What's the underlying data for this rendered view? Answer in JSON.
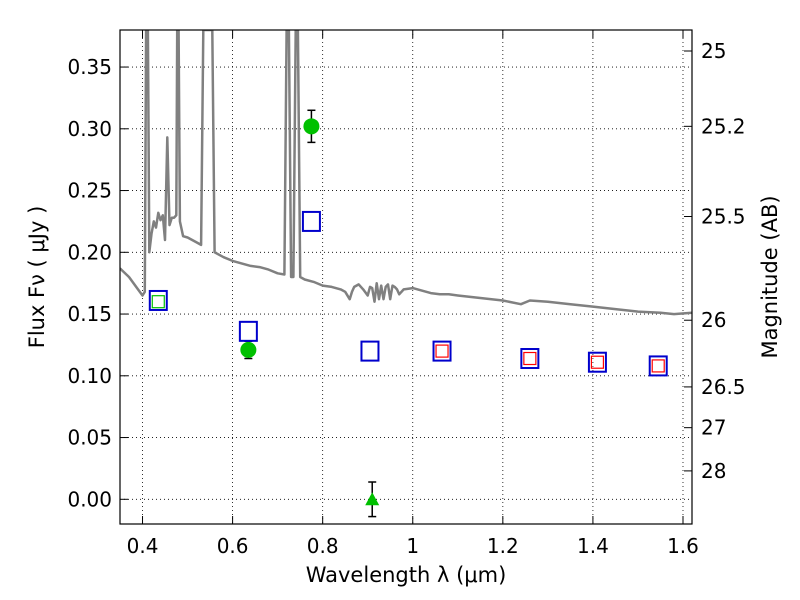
{
  "chart_data": {
    "type": "scatter",
    "xlabel": "Wavelength  λ (μm)",
    "ylabel": "Flux  Fν  ( μJy )",
    "ylabel_right": "Magnitude (AB)",
    "xlim": [
      0.35,
      1.62
    ],
    "ylim": [
      -0.02,
      0.38
    ],
    "grid": true,
    "grid_style": "dotted",
    "x_ticks": [
      0.4,
      0.6,
      0.8,
      1.0,
      1.2,
      1.4,
      1.6
    ],
    "x_tick_labels": [
      "0.4",
      "0.6",
      "0.8",
      "1",
      "1.2",
      "1.4",
      "1.6"
    ],
    "y_ticks": [
      0.0,
      0.05,
      0.1,
      0.15,
      0.2,
      0.25,
      0.3,
      0.35
    ],
    "y_tick_labels": [
      "0.00",
      "0.05",
      "0.10",
      "0.15",
      "0.20",
      "0.25",
      "0.30",
      "0.35"
    ],
    "right_ticks": [
      {
        "label": "25",
        "flux": 0.363
      },
      {
        "label": "25.2",
        "flux": 0.302
      },
      {
        "label": "25.5",
        "flux": 0.229
      },
      {
        "label": "26",
        "flux": 0.145
      },
      {
        "label": "26.5",
        "flux": 0.091
      },
      {
        "label": "27",
        "flux": 0.058
      },
      {
        "label": "28",
        "flux": 0.023
      }
    ],
    "model_spectrum": {
      "color": "#808080",
      "points": [
        [
          0.35,
          0.187
        ],
        [
          0.37,
          0.18
        ],
        [
          0.39,
          0.17
        ],
        [
          0.4,
          0.165
        ],
        [
          0.405,
          0.168
        ],
        [
          0.408,
          0.38
        ],
        [
          0.412,
          0.38
        ],
        [
          0.415,
          0.2
        ],
        [
          0.42,
          0.215
        ],
        [
          0.425,
          0.225
        ],
        [
          0.43,
          0.22
        ],
        [
          0.435,
          0.232
        ],
        [
          0.44,
          0.226
        ],
        [
          0.445,
          0.23
        ],
        [
          0.45,
          0.21
        ],
        [
          0.455,
          0.293
        ],
        [
          0.46,
          0.222
        ],
        [
          0.465,
          0.228
        ],
        [
          0.47,
          0.228
        ],
        [
          0.475,
          0.23
        ],
        [
          0.477,
          0.38
        ],
        [
          0.48,
          0.38
        ],
        [
          0.483,
          0.225
        ],
        [
          0.49,
          0.213
        ],
        [
          0.5,
          0.212
        ],
        [
          0.52,
          0.208
        ],
        [
          0.53,
          0.206
        ],
        [
          0.535,
          0.38
        ],
        [
          0.54,
          0.38
        ],
        [
          0.545,
          0.38
        ],
        [
          0.55,
          0.38
        ],
        [
          0.555,
          0.38
        ],
        [
          0.56,
          0.2
        ],
        [
          0.58,
          0.196
        ],
        [
          0.6,
          0.193
        ],
        [
          0.62,
          0.191
        ],
        [
          0.64,
          0.189
        ],
        [
          0.66,
          0.188
        ],
        [
          0.68,
          0.186
        ],
        [
          0.7,
          0.183
        ],
        [
          0.715,
          0.182
        ],
        [
          0.72,
          0.38
        ],
        [
          0.725,
          0.38
        ],
        [
          0.73,
          0.18
        ],
        [
          0.735,
          0.18
        ],
        [
          0.74,
          0.38
        ],
        [
          0.745,
          0.38
        ],
        [
          0.75,
          0.18
        ],
        [
          0.76,
          0.178
        ],
        [
          0.78,
          0.176
        ],
        [
          0.8,
          0.173
        ],
        [
          0.82,
          0.172
        ],
        [
          0.84,
          0.17
        ],
        [
          0.85,
          0.168
        ],
        [
          0.86,
          0.162
        ],
        [
          0.865,
          0.168
        ],
        [
          0.87,
          0.172
        ],
        [
          0.88,
          0.174
        ],
        [
          0.89,
          0.17
        ],
        [
          0.9,
          0.165
        ],
        [
          0.905,
          0.172
        ],
        [
          0.91,
          0.171
        ],
        [
          0.915,
          0.16
        ],
        [
          0.92,
          0.175
        ],
        [
          0.925,
          0.162
        ],
        [
          0.93,
          0.173
        ],
        [
          0.935,
          0.162
        ],
        [
          0.94,
          0.172
        ],
        [
          0.945,
          0.174
        ],
        [
          0.95,
          0.162
        ],
        [
          0.955,
          0.173
        ],
        [
          0.96,
          0.172
        ],
        [
          0.965,
          0.17
        ],
        [
          0.97,
          0.166
        ],
        [
          0.98,
          0.17
        ],
        [
          1.0,
          0.171
        ],
        [
          1.02,
          0.169
        ],
        [
          1.04,
          0.167
        ],
        [
          1.06,
          0.166
        ],
        [
          1.08,
          0.166
        ],
        [
          1.1,
          0.165
        ],
        [
          1.15,
          0.163
        ],
        [
          1.2,
          0.161
        ],
        [
          1.24,
          0.158
        ],
        [
          1.26,
          0.161
        ],
        [
          1.3,
          0.16
        ],
        [
          1.35,
          0.158
        ],
        [
          1.4,
          0.156
        ],
        [
          1.45,
          0.154
        ],
        [
          1.5,
          0.152
        ],
        [
          1.55,
          0.151
        ],
        [
          1.58,
          0.15
        ],
        [
          1.62,
          0.151
        ]
      ]
    },
    "series": [
      {
        "marker": "circle",
        "color": "#00c000",
        "points": [
          {
            "x": 0.635,
            "y": 0.121,
            "err": 0.007
          },
          {
            "x": 0.775,
            "y": 0.302,
            "err": 0.013
          }
        ]
      },
      {
        "marker": "triangle",
        "color": "#00c000",
        "points": [
          {
            "x": 0.91,
            "y": 0.0,
            "err": 0.014
          }
        ]
      },
      {
        "marker": "open-square",
        "color": "#0000cc",
        "points": [
          {
            "x": 0.435,
            "y": 0.161
          },
          {
            "x": 0.635,
            "y": 0.136
          },
          {
            "x": 0.775,
            "y": 0.225
          },
          {
            "x": 0.905,
            "y": 0.12
          },
          {
            "x": 1.065,
            "y": 0.12
          },
          {
            "x": 1.26,
            "y": 0.114
          },
          {
            "x": 1.41,
            "y": 0.111
          },
          {
            "x": 1.545,
            "y": 0.108
          }
        ]
      },
      {
        "marker": "open-square-small",
        "color": "#ff0000",
        "points": [
          {
            "x": 1.065,
            "y": 0.12
          },
          {
            "x": 1.26,
            "y": 0.114
          },
          {
            "x": 1.41,
            "y": 0.111
          },
          {
            "x": 1.545,
            "y": 0.108
          }
        ]
      },
      {
        "marker": "open-square-small",
        "color": "#00c000",
        "points": [
          {
            "x": 0.435,
            "y": 0.16
          }
        ]
      }
    ]
  }
}
